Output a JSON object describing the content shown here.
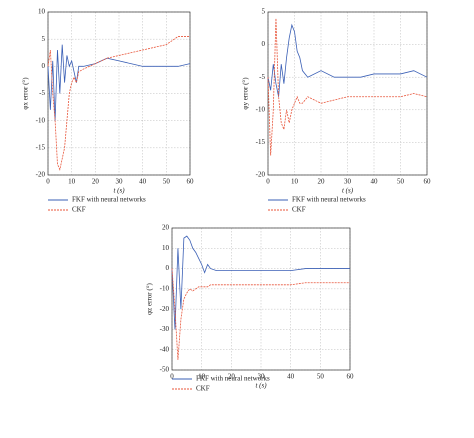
{
  "chart_data": [
    {
      "type": "line",
      "y_label": "φx error (°)",
      "x_label": "t (s)",
      "xlim": [
        0,
        60
      ],
      "xticks": [
        0,
        10,
        20,
        30,
        40,
        50,
        60
      ],
      "ylim": [
        -20,
        10
      ],
      "yticks": [
        -20,
        -15,
        -10,
        -5,
        0,
        5,
        10
      ],
      "grid": true,
      "x": [
        0,
        1,
        2,
        3,
        4,
        5,
        6,
        7,
        8,
        9,
        10,
        11,
        12,
        13,
        15,
        20,
        25,
        30,
        35,
        40,
        45,
        50,
        55,
        60
      ],
      "series": [
        {
          "name": "FKF with neural networks",
          "color": "#3a5fb5",
          "values": [
            0,
            -8,
            1,
            -10,
            3,
            -5,
            4,
            -3,
            2,
            0,
            1,
            -1,
            -3,
            0,
            0,
            0.5,
            1.5,
            1,
            0.5,
            0,
            0,
            0,
            0,
            0.5
          ]
        },
        {
          "name": "CKF",
          "color": "#e8553a",
          "values": [
            0,
            3,
            -5,
            -10,
            -18,
            -19,
            -17,
            -15,
            -10,
            -5,
            -3,
            -2,
            -3,
            -1,
            -0.5,
            0.5,
            1.5,
            2,
            2.5,
            3,
            3.5,
            4,
            5.5,
            5.5
          ]
        }
      ]
    },
    {
      "type": "line",
      "y_label": "φy error (°)",
      "x_label": "t (s)",
      "xlim": [
        0,
        60
      ],
      "xticks": [
        0,
        10,
        20,
        30,
        40,
        50,
        60
      ],
      "ylim": [
        -20,
        5
      ],
      "yticks": [
        -20,
        -15,
        -10,
        -5,
        0,
        5
      ],
      "grid": true,
      "x": [
        0,
        1,
        2,
        3,
        4,
        5,
        6,
        7,
        8,
        9,
        10,
        11,
        12,
        13,
        15,
        20,
        25,
        30,
        35,
        40,
        45,
        50,
        55,
        60
      ],
      "series": [
        {
          "name": "FKF with neural networks",
          "color": "#3a5fb5",
          "values": [
            -5,
            -7,
            -3,
            -6,
            -8,
            -3,
            -6,
            -2,
            1,
            3,
            2,
            -1,
            -2,
            -4,
            -5,
            -4,
            -5,
            -5,
            -5,
            -4.5,
            -4.5,
            -4.5,
            -4,
            -5
          ]
        },
        {
          "name": "CKF",
          "color": "#e8553a",
          "values": [
            -5,
            -17,
            -10,
            4,
            -8,
            -12,
            -13,
            -10,
            -12,
            -10,
            -9,
            -8,
            -9,
            -9,
            -8,
            -9,
            -8.5,
            -8,
            -8,
            -8,
            -8,
            -8,
            -7.5,
            -8
          ]
        }
      ]
    },
    {
      "type": "line",
      "y_label": "φz error (°)",
      "x_label": "t (s)",
      "xlim": [
        0,
        60
      ],
      "xticks": [
        0,
        10,
        20,
        30,
        40,
        50,
        60
      ],
      "ylim": [
        -50,
        20
      ],
      "yticks": [
        -50,
        -40,
        -30,
        -20,
        -10,
        0,
        10,
        20
      ],
      "grid": true,
      "x": [
        0,
        1,
        2,
        3,
        4,
        5,
        6,
        7,
        8,
        9,
        10,
        11,
        12,
        13,
        15,
        20,
        25,
        30,
        35,
        40,
        45,
        50,
        55,
        60
      ],
      "series": [
        {
          "name": "FKF with neural networks",
          "color": "#3a5fb5",
          "values": [
            0,
            -30,
            10,
            -20,
            15,
            16,
            14,
            10,
            8,
            5,
            2,
            -2,
            2,
            0,
            -1,
            -1,
            -1,
            -1,
            -1,
            -1,
            0,
            0,
            0,
            0
          ]
        },
        {
          "name": "CKF",
          "color": "#e8553a",
          "values": [
            0,
            -20,
            -45,
            -25,
            -15,
            -12,
            -10,
            -11,
            -10,
            -9,
            -9,
            -9,
            -9,
            -8,
            -8,
            -8,
            -8,
            -8,
            -8,
            -8,
            -7,
            -7,
            -7,
            -7
          ]
        }
      ]
    }
  ]
}
